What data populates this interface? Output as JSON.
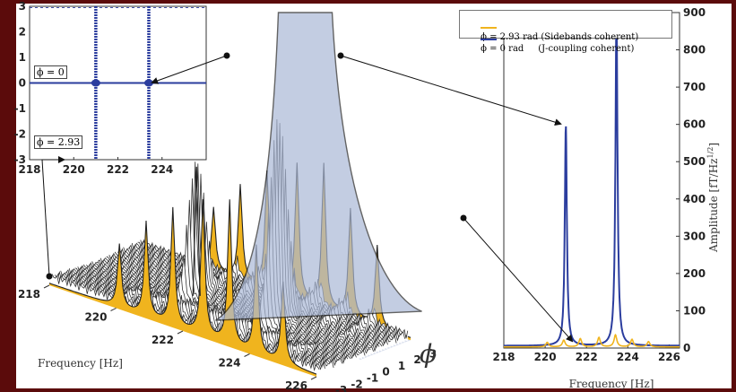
{
  "colors": {
    "frame": "#5b0b0b",
    "sidebands": "#f0b41e",
    "jcoupling": "#2b3d9e",
    "surface": "#aab8d6",
    "waterfall": "#ffffff"
  },
  "chart_data": [
    {
      "id": "waterfall",
      "type": "area",
      "description_axis_x": "Frequency [Hz]",
      "xlabel": "Frequency [Hz]",
      "ylabel": "ϕ",
      "x_ticks": [
        "218",
        "220",
        "222",
        "224",
        "226"
      ],
      "phi_ticks": [
        "-3",
        "-2",
        "-1",
        "0",
        "1",
        "2",
        "3"
      ],
      "xlim": [
        218,
        227
      ],
      "philim": [
        -3,
        3
      ],
      "highlighted_slices": [
        2.93,
        0
      ]
    },
    {
      "id": "inset",
      "type": "heatmap",
      "x_ticks": [
        "218",
        "220",
        "222",
        "224"
      ],
      "y_ticks": [
        "3",
        "2",
        "1",
        "0",
        "-1",
        "-2",
        "-3"
      ],
      "xlim": [
        218,
        226
      ],
      "ylim": [
        -3,
        3
      ],
      "labels": [
        "ϕ = 0",
        "ϕ = 2.93"
      ],
      "vertical_lines_hz": [
        221,
        223.4
      ],
      "horizontal_line_phi": 0
    },
    {
      "id": "spectrum",
      "type": "line",
      "xlabel": "Frequency [Hz]",
      "ylabel": "Amplitude [fT/Hz^1/2]",
      "x_ticks": [
        "218",
        "220",
        "222",
        "224",
        "226"
      ],
      "y_ticks": [
        "0",
        "100",
        "200",
        "300",
        "400",
        "500",
        "600",
        "700",
        "800",
        "900"
      ],
      "xlim": [
        218,
        226.5
      ],
      "ylim": [
        0,
        900
      ],
      "legend_position": "top",
      "series": [
        {
          "name": "ϕ = 2.93 rad (Sidebands coherent)",
          "color": "#f0b41e",
          "peaks": [
            [
              220.1,
              12
            ],
            [
              220.9,
              18
            ],
            [
              221.7,
              22
            ],
            [
              222.6,
              25
            ],
            [
              223.4,
              32
            ],
            [
              224.2,
              20
            ],
            [
              225.0,
              14
            ]
          ]
        },
        {
          "name": "ϕ = 0 rad     (J-coupling coherent)",
          "color": "#2b3d9e",
          "peaks": [
            [
              221.0,
              590
            ],
            [
              223.45,
              900
            ]
          ],
          "dip": [
            222.6,
            28
          ]
        }
      ]
    }
  ]
}
